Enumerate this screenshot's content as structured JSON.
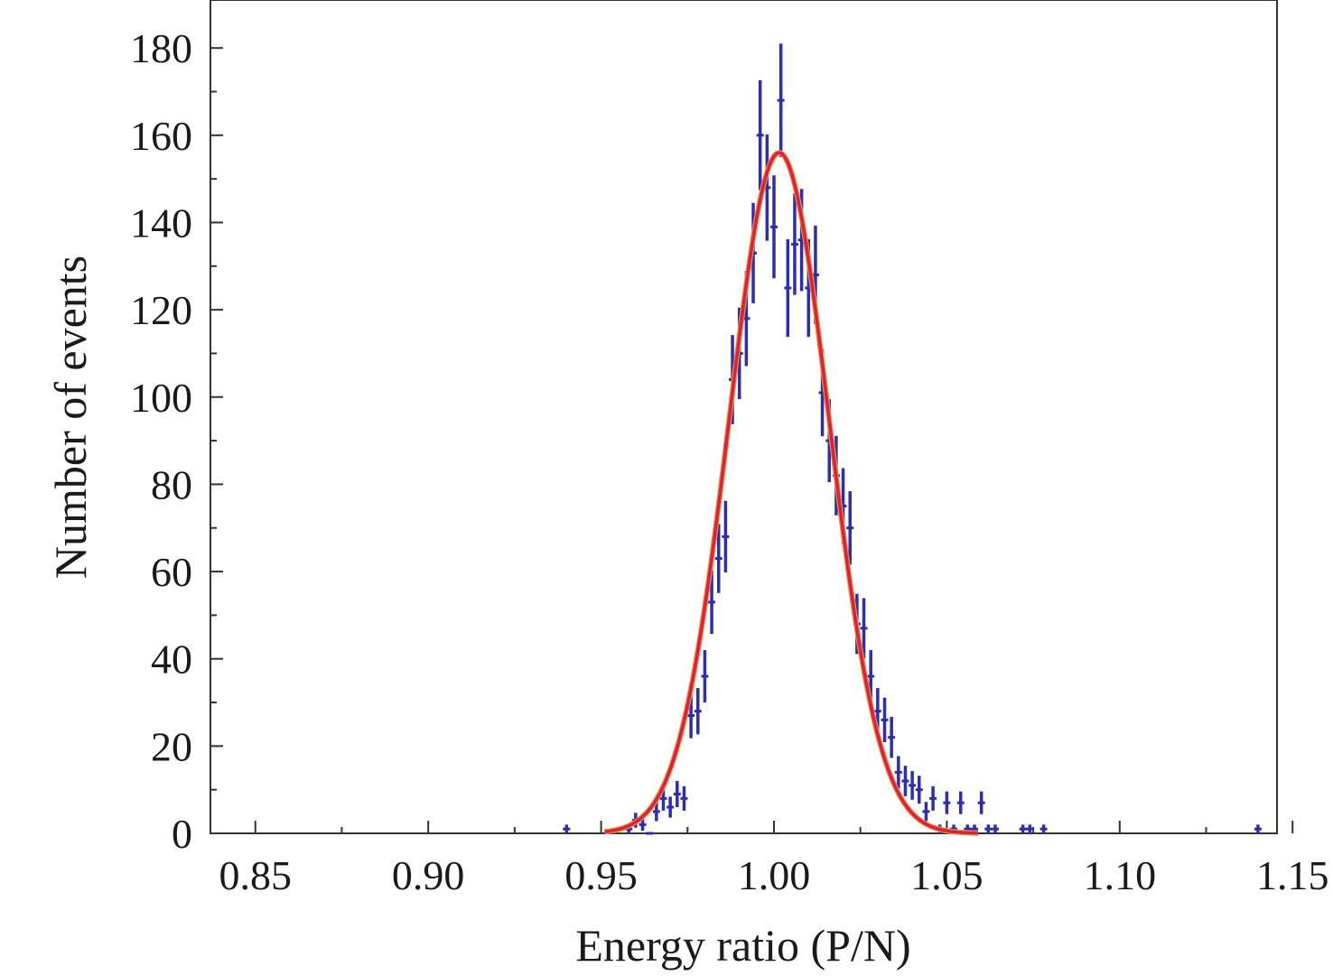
{
  "chart_data": {
    "type": "scatter",
    "xlabel": "Energy ratio (P/N)",
    "ylabel": "Number of events",
    "xlim": [
      0.837,
      1.1455
    ],
    "ylim": [
      0,
      191
    ],
    "xticks": [
      0.85,
      0.9,
      0.95,
      1.0,
      1.05,
      1.1,
      1.15
    ],
    "xtick_labels": [
      "0.85",
      "0.90",
      "0.95",
      "1.00",
      "1.05",
      "1.10",
      "1.15"
    ],
    "yticks": [
      0,
      20,
      40,
      60,
      80,
      100,
      120,
      140,
      160,
      180
    ],
    "ytick_labels": [
      "0",
      "20",
      "40",
      "60",
      "80",
      "100",
      "120",
      "140",
      "160",
      "180"
    ],
    "grid": false,
    "colors": {
      "data": "#2d2db0",
      "fit": "#e8174f",
      "fit_outline": "#d8a020"
    },
    "series": [
      {
        "kind": "errorbar",
        "x": [
          0.94,
          0.958,
          0.96,
          0.962,
          0.964,
          0.966,
          0.968,
          0.97,
          0.972,
          0.974,
          0.976,
          0.978,
          0.98,
          0.982,
          0.984,
          0.986,
          0.988,
          0.99,
          0.992,
          0.994,
          0.996,
          0.998,
          1.0,
          1.002,
          1.004,
          1.006,
          1.008,
          1.01,
          1.012,
          1.014,
          1.016,
          1.018,
          1.02,
          1.022,
          1.024,
          1.026,
          1.028,
          1.03,
          1.032,
          1.034,
          1.036,
          1.038,
          1.04,
          1.042,
          1.044,
          1.046,
          1.048,
          1.05,
          1.052,
          1.054,
          1.056,
          1.058,
          1.06,
          1.062,
          1.064,
          1.072,
          1.074,
          1.078,
          1.14
        ],
        "y": [
          1,
          1,
          3,
          2,
          0,
          5,
          8,
          6,
          9,
          8,
          27,
          28,
          36,
          53,
          63,
          68,
          104,
          110,
          118,
          133,
          160,
          148,
          139,
          168,
          125,
          135,
          136,
          125,
          128,
          101,
          90,
          82,
          75,
          70,
          48,
          47,
          36,
          28,
          26,
          22,
          14,
          12,
          11,
          10,
          5,
          8,
          1,
          7,
          1,
          7,
          1,
          1,
          7,
          1,
          1,
          1,
          1,
          1,
          1
        ],
        "err": [
          1,
          1,
          1.7,
          1.4,
          0,
          2.2,
          2.8,
          2.4,
          3.0,
          2.8,
          5.2,
          5.3,
          6.0,
          7.3,
          7.9,
          8.2,
          10.2,
          10.5,
          10.9,
          11.5,
          12.6,
          12.2,
          11.8,
          13.0,
          11.2,
          11.6,
          11.7,
          11.2,
          11.3,
          10.0,
          9.5,
          9.1,
          8.7,
          8.4,
          6.9,
          6.9,
          6.0,
          5.3,
          5.1,
          4.7,
          3.7,
          3.5,
          3.3,
          3.2,
          2.2,
          2.8,
          1,
          2.6,
          1,
          2.6,
          1,
          1,
          2.6,
          1,
          1,
          1,
          1,
          1,
          1
        ]
      },
      {
        "kind": "fit",
        "shape": "gaussian",
        "amplitude": 156,
        "mean": 1.0015,
        "sigma": 0.0145,
        "x_range": [
          0.951,
          1.059
        ]
      }
    ]
  }
}
